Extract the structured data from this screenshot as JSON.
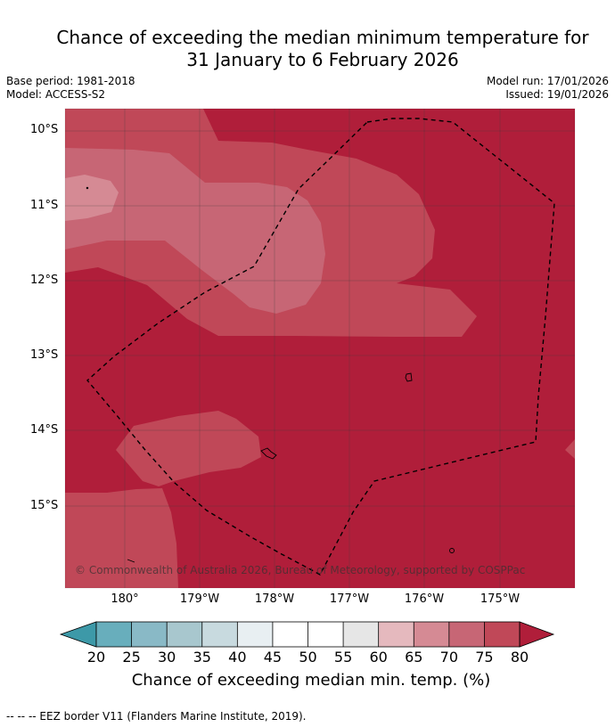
{
  "title": {
    "line1": "Chance of exceeding the median minimum temperature for",
    "line2": "31 January to 6 February 2026"
  },
  "meta": {
    "base_period": "Base period: 1981-2018",
    "model": "Model: ACCESS-S2",
    "model_run": "Model run: 17/01/2026",
    "issued": "Issued: 19/01/2026"
  },
  "map": {
    "lat_labels": [
      "10°S",
      "11°S",
      "12°S",
      "13°S",
      "14°S",
      "15°S"
    ],
    "lon_labels": [
      "180°",
      "179°W",
      "178°W",
      "177°W",
      "176°W",
      "175°W"
    ],
    "copyright": "© Commonwealth of Australia 2026, Bureau of Meteorology, supported by COSPPac"
  },
  "colorbar": {
    "labels": [
      "20",
      "25",
      "30",
      "35",
      "40",
      "45",
      "50",
      "55",
      "60",
      "65",
      "70",
      "75",
      "80"
    ],
    "colors": [
      "#3d99a8",
      "#68aebc",
      "#89b9c6",
      "#a8c7ce",
      "#c8dadf",
      "#e8eff2",
      "#ffffff",
      "#ffffff",
      "#e6e6e6",
      "#e5b9be",
      "#d58a94",
      "#c76675",
      "#c04858",
      "#b01e3a"
    ],
    "title": "Chance of exceeding median min. temp. (%)"
  },
  "legend": {
    "text": "--  --  -- EEZ border V11 (Flanders Marine Institute, 2019)."
  }
}
